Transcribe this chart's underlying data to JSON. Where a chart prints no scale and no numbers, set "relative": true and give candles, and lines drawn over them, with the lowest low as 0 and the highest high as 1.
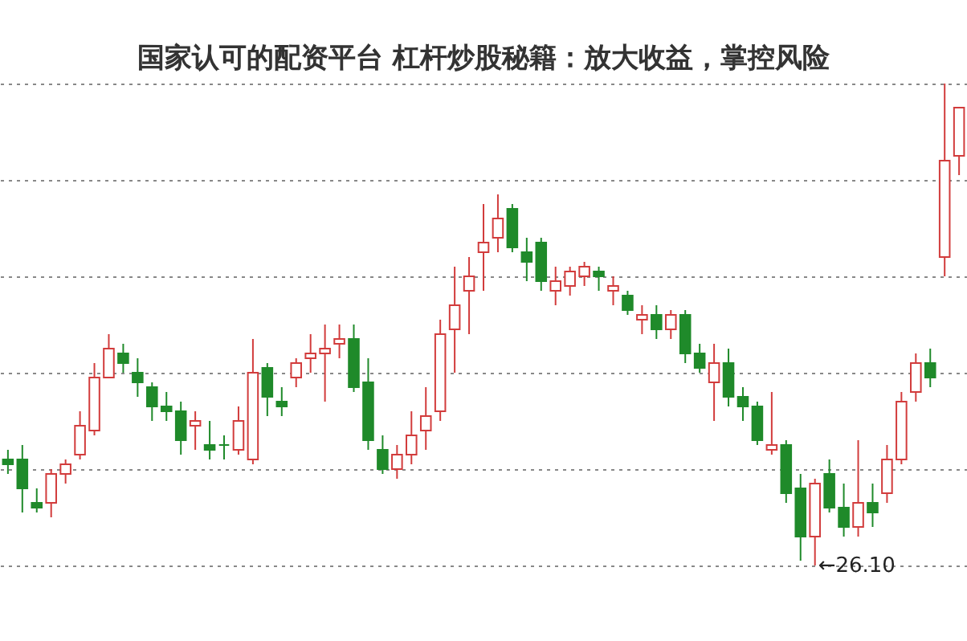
{
  "chart_data": {
    "type": "candlestick",
    "relative": true,
    "title": "国家认可的配资平台 杠杆炒股秘籍：放大收益，掌控风险",
    "grid": "y",
    "categories": [
      null,
      null,
      null,
      null,
      null,
      null,
      null,
      null,
      null,
      null,
      null,
      null,
      null,
      null,
      null,
      null,
      null,
      null,
      null,
      null,
      null,
      null,
      null,
      null,
      null,
      null,
      null,
      null,
      null,
      null,
      null,
      null,
      null,
      null,
      null,
      null,
      null,
      null,
      null,
      null,
      null,
      null,
      null,
      null,
      null,
      null,
      null,
      null,
      null,
      null,
      null,
      null,
      null,
      null,
      null,
      null,
      null,
      null,
      null,
      null,
      null,
      null,
      null,
      null,
      null,
      null,
      null
    ],
    "ohlc": [
      [
        0.22,
        0.24,
        0.19,
        0.21
      ],
      [
        0.22,
        0.25,
        0.11,
        0.16
      ],
      [
        0.13,
        0.16,
        0.11,
        0.12
      ],
      [
        0.13,
        0.2,
        0.1,
        0.19
      ],
      [
        0.19,
        0.22,
        0.17,
        0.21
      ],
      [
        0.23,
        0.32,
        0.22,
        0.29
      ],
      [
        0.28,
        0.42,
        0.27,
        0.39
      ],
      [
        0.39,
        0.48,
        0.39,
        0.45
      ],
      [
        0.44,
        0.46,
        0.4,
        0.42
      ],
      [
        0.4,
        0.43,
        0.35,
        0.38
      ],
      [
        0.37,
        0.38,
        0.3,
        0.33
      ],
      [
        0.33,
        0.36,
        0.3,
        0.32
      ],
      [
        0.32,
        0.34,
        0.23,
        0.26
      ],
      [
        0.29,
        0.32,
        0.24,
        0.3
      ],
      [
        0.25,
        0.3,
        0.22,
        0.24
      ],
      [
        0.25,
        0.27,
        0.22,
        0.25
      ],
      [
        0.24,
        0.33,
        0.23,
        0.3
      ],
      [
        0.22,
        0.47,
        0.21,
        0.4
      ],
      [
        0.41,
        0.42,
        0.31,
        0.35
      ],
      [
        0.34,
        0.37,
        0.31,
        0.33
      ],
      [
        0.39,
        0.43,
        0.37,
        0.42
      ],
      [
        0.43,
        0.48,
        0.4,
        0.44
      ],
      [
        0.44,
        0.5,
        0.34,
        0.45
      ],
      [
        0.46,
        0.5,
        0.43,
        0.47
      ],
      [
        0.47,
        0.5,
        0.36,
        0.37
      ],
      [
        0.38,
        0.43,
        0.24,
        0.26
      ],
      [
        0.24,
        0.27,
        0.19,
        0.2
      ],
      [
        0.2,
        0.25,
        0.18,
        0.23
      ],
      [
        0.23,
        0.32,
        0.21,
        0.27
      ],
      [
        0.28,
        0.37,
        0.24,
        0.31
      ],
      [
        0.32,
        0.51,
        0.3,
        0.48
      ],
      [
        0.49,
        0.62,
        0.4,
        0.54
      ],
      [
        0.57,
        0.64,
        0.48,
        0.6
      ],
      [
        0.65,
        0.75,
        0.57,
        0.67
      ],
      [
        0.68,
        0.77,
        0.65,
        0.72
      ],
      [
        0.74,
        0.75,
        0.65,
        0.66
      ],
      [
        0.65,
        0.68,
        0.59,
        0.63
      ],
      [
        0.67,
        0.68,
        0.57,
        0.59
      ],
      [
        0.57,
        0.62,
        0.54,
        0.59
      ],
      [
        0.58,
        0.62,
        0.56,
        0.61
      ],
      [
        0.6,
        0.63,
        0.58,
        0.62
      ],
      [
        0.61,
        0.62,
        0.57,
        0.6
      ],
      [
        0.57,
        0.6,
        0.54,
        0.58
      ],
      [
        0.56,
        0.57,
        0.52,
        0.53
      ],
      [
        0.51,
        0.54,
        0.48,
        0.52
      ],
      [
        0.52,
        0.54,
        0.47,
        0.49
      ],
      [
        0.49,
        0.53,
        0.47,
        0.52
      ],
      [
        0.52,
        0.53,
        0.42,
        0.44
      ],
      [
        0.44,
        0.46,
        0.4,
        0.41
      ],
      [
        0.38,
        0.46,
        0.3,
        0.42
      ],
      [
        0.42,
        0.45,
        0.33,
        0.35
      ],
      [
        0.35,
        0.37,
        0.3,
        0.33
      ],
      [
        0.33,
        0.34,
        0.25,
        0.26
      ],
      [
        0.24,
        0.36,
        0.23,
        0.25
      ],
      [
        0.25,
        0.26,
        0.13,
        0.15
      ],
      [
        0.16,
        0.19,
        0.01,
        0.06
      ],
      [
        0.06,
        0.18,
        0,
        0.17
      ],
      [
        0.19,
        0.22,
        0.11,
        0.12
      ],
      [
        0.12,
        0.17,
        0.06,
        0.08
      ],
      [
        0.08,
        0.26,
        0.06,
        0.13
      ],
      [
        0.13,
        0.17,
        0.08,
        0.11
      ],
      [
        0.15,
        0.25,
        0.13,
        0.22
      ],
      [
        0.22,
        0.36,
        0.21,
        0.34
      ],
      [
        0.36,
        0.44,
        0.34,
        0.42
      ],
      [
        0.42,
        0.45,
        0.37,
        0.39
      ],
      [
        0.64,
        1.0,
        0.6,
        0.84
      ],
      [
        0.85,
        0.95,
        0.81,
        0.95
      ]
    ],
    "colors": [
      "#1f8a2a",
      "#1f8a2a",
      "#1f8a2a",
      "#d23c3c",
      "#d23c3c",
      "#d23c3c",
      "#d23c3c",
      "#d23c3c",
      "#1f8a2a",
      "#1f8a2a",
      "#1f8a2a",
      "#1f8a2a",
      "#1f8a2a",
      "#d23c3c",
      "#1f8a2a",
      "#1f8a2a",
      "#d23c3c",
      "#d23c3c",
      "#1f8a2a",
      "#1f8a2a",
      "#d23c3c",
      "#d23c3c",
      "#d23c3c",
      "#d23c3c",
      "#1f8a2a",
      "#1f8a2a",
      "#1f8a2a",
      "#d23c3c",
      "#d23c3c",
      "#d23c3c",
      "#d23c3c",
      "#d23c3c",
      "#d23c3c",
      "#d23c3c",
      "#d23c3c",
      "#1f8a2a",
      "#1f8a2a",
      "#1f8a2a",
      "#d23c3c",
      "#d23c3c",
      "#d23c3c",
      "#1f8a2a",
      "#d23c3c",
      "#1f8a2a",
      "#d23c3c",
      "#1f8a2a",
      "#d23c3c",
      "#1f8a2a",
      "#1f8a2a",
      "#d23c3c",
      "#1f8a2a",
      "#1f8a2a",
      "#1f8a2a",
      "#d23c3c",
      "#1f8a2a",
      "#1f8a2a",
      "#d23c3c",
      "#1f8a2a",
      "#1f8a2a",
      "#d23c3c",
      "#1f8a2a",
      "#d23c3c",
      "#d23c3c",
      "#d23c3c",
      "#1f8a2a",
      "#d23c3c",
      "#d23c3c"
    ],
    "annotations": [
      "←26.10"
    ]
  }
}
